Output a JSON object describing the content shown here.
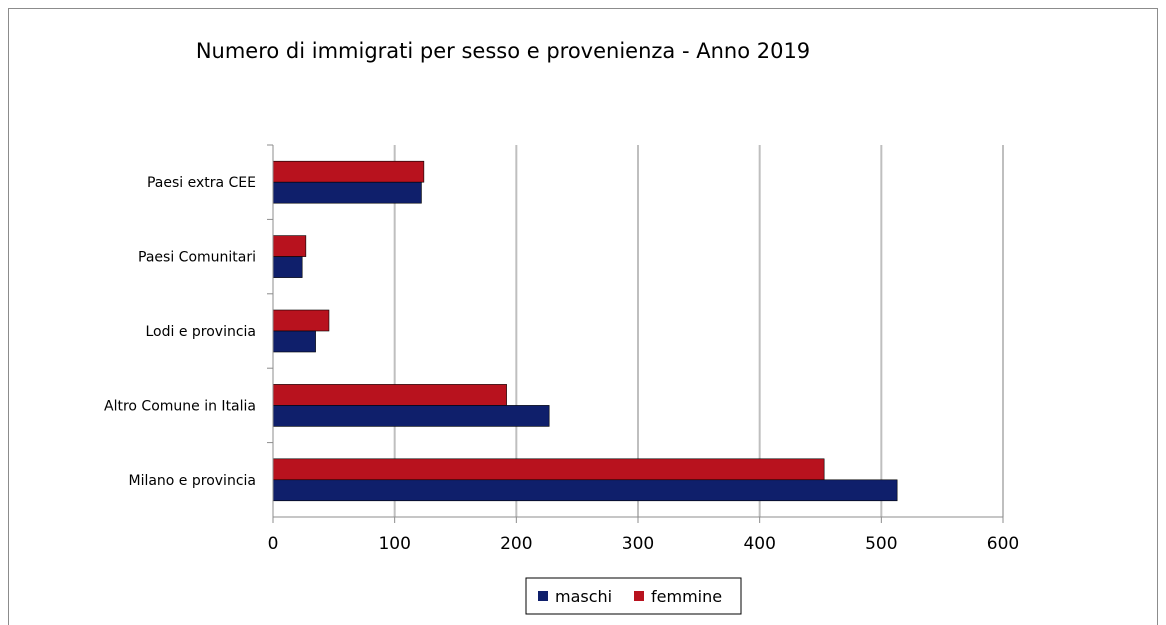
{
  "chart_data": {
    "type": "bar",
    "orientation": "horizontal",
    "title": "Numero di immigrati per sesso e provenienza - Anno 2019",
    "categories": [
      "Milano e provincia",
      "Altro Comune in Italia",
      "Lodi e provincia",
      "Paesi Comunitari",
      "Paesi extra CEE"
    ],
    "series": [
      {
        "name": "maschi",
        "color": "#0f1f6b",
        "values": [
          513,
          227,
          35,
          24,
          122
        ]
      },
      {
        "name": "femmine",
        "color": "#b8121e",
        "values": [
          453,
          192,
          46,
          27,
          124
        ]
      }
    ],
    "x_ticks": [
      "0",
      "100",
      "200",
      "300",
      "400",
      "500",
      "600"
    ],
    "xlim": [
      0,
      600
    ],
    "grid": true,
    "legend_position": "bottom"
  }
}
